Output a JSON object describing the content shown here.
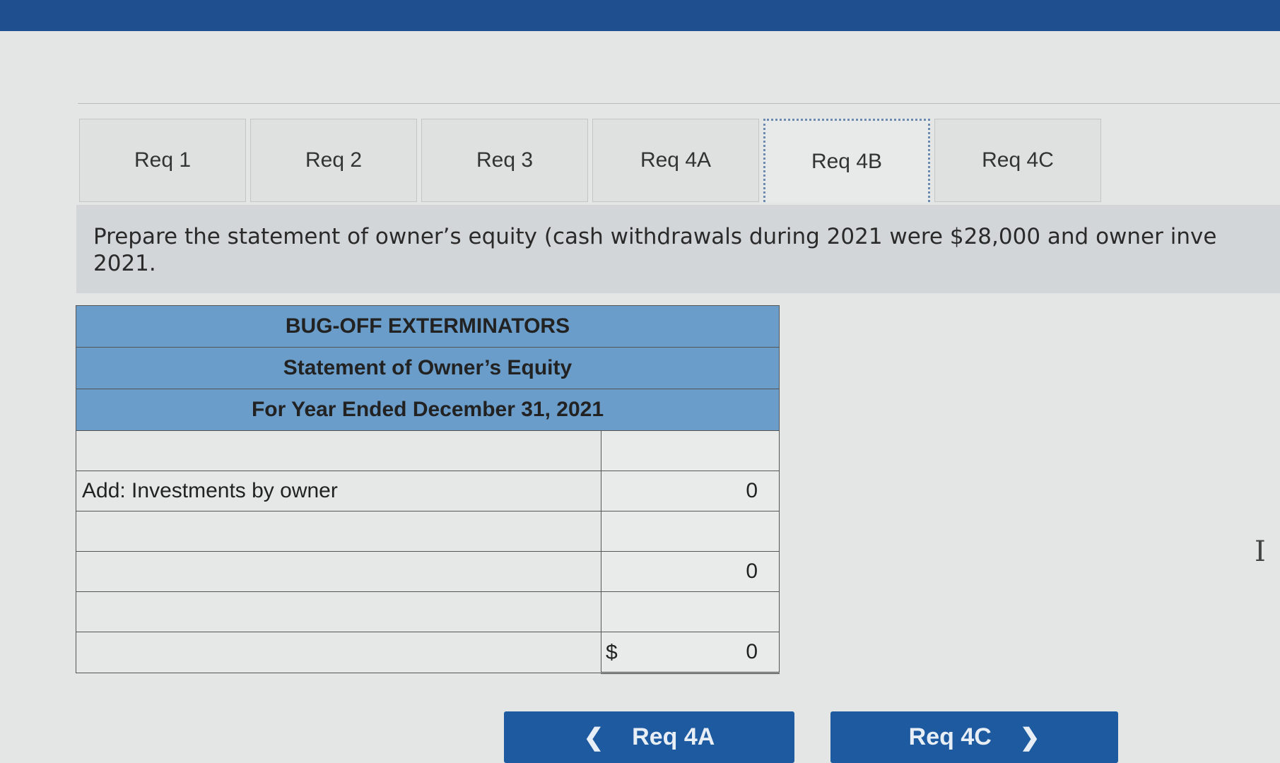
{
  "tabs": [
    "Req 1",
    "Req 2",
    "Req 3",
    "Req 4A",
    "Req 4B",
    "Req 4C"
  ],
  "active_tab": "Req 4B",
  "instruction": "Prepare the statement of owner’s equity (cash withdrawals during 2021 were $28,000 and owner inve",
  "instruction_line2": "2021.",
  "statement": {
    "company": "BUG-OFF EXTERMINATORS",
    "title": "Statement of Owner’s Equity",
    "period": "For Year Ended December 31, 2021",
    "rows": [
      {
        "label": "",
        "value": ""
      },
      {
        "label": "Add: Investments by owner",
        "value": "0"
      },
      {
        "label": "",
        "value": ""
      },
      {
        "label": "",
        "value": "0"
      },
      {
        "label": "",
        "value": ""
      },
      {
        "label": "",
        "currency": "$",
        "value": "0"
      }
    ]
  },
  "nav": {
    "prev": "Req 4A",
    "next": "Req 4C",
    "prev_icon": "chevron-left-icon",
    "next_icon": "chevron-right-icon"
  },
  "colors": {
    "header": "#6a9dc9",
    "button": "#1d5aa0",
    "topbar": "#1f4f8f"
  }
}
